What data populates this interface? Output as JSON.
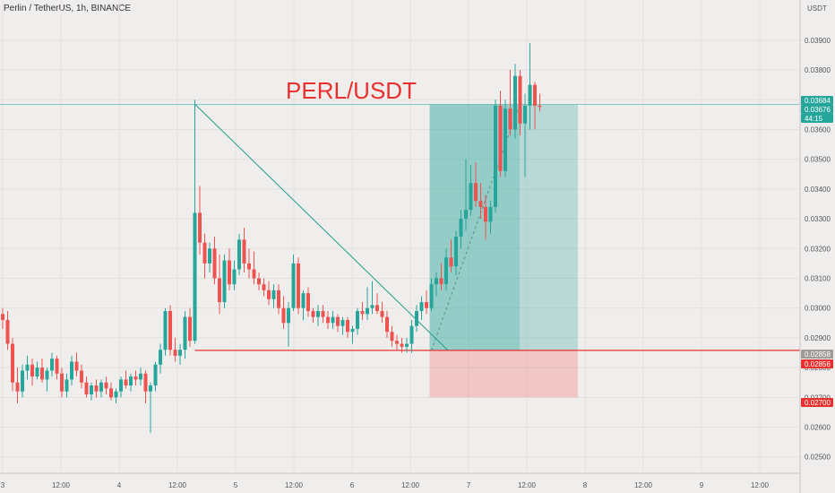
{
  "header": {
    "symbol_text": "Perlin / TetherUS, 1h, BINANCE"
  },
  "colors": {
    "background": "#f0eeed",
    "grid": "#e3e0df",
    "up": "#26a69a",
    "down": "#ef5350",
    "profit_zone": "#26a69a",
    "loss_zone": "#ef5350",
    "title": "#e8312f",
    "price_line": "#26a69a",
    "entry_line": "#e8312f"
  },
  "chart_data": {
    "type": "candlestick",
    "title": "PERL/USDT",
    "y_axis": {
      "unit_label": "USDT",
      "ticks": [
        "0.02500",
        "0.02600",
        "0.02700",
        "0.02800",
        "0.02900",
        "0.03000",
        "0.03100",
        "0.03200",
        "0.03300",
        "0.03400",
        "0.03500",
        "0.03600",
        "0.03700",
        "0.03800",
        "0.03900"
      ],
      "range": [
        0.02445,
        0.04035
      ]
    },
    "x_axis": {
      "ticks": [
        "3",
        "12:00",
        "4",
        "12:00",
        "5",
        "12:00",
        "6",
        "12:00",
        "7",
        "12:00",
        "8",
        "12:00",
        "9",
        "12:00"
      ]
    },
    "price_labels": [
      {
        "text": "0.03684",
        "kind": "current"
      },
      {
        "text": "0.03676",
        "kind": "current"
      },
      {
        "text": "44:15",
        "kind": "countdown"
      },
      {
        "text": "0.02858",
        "kind": "entry"
      },
      {
        "text": "0.02856",
        "kind": "entry-alt"
      },
      {
        "text": "0.02700",
        "kind": "stop"
      }
    ],
    "position": {
      "entry": 0.02858,
      "target": 0.03684,
      "stop": 0.027,
      "start_bar": 0,
      "end_bar": 0
    },
    "trendline": {
      "from_price": 0.03685,
      "to_price": 0.02858
    },
    "ohlc": [
      [
        0.0298,
        0.03,
        0.0293,
        0.0296
      ],
      [
        0.0296,
        0.0299,
        0.0286,
        0.0288
      ],
      [
        0.0288,
        0.029,
        0.0272,
        0.0275
      ],
      [
        0.0275,
        0.028,
        0.0268,
        0.0272
      ],
      [
        0.0272,
        0.0281,
        0.027,
        0.0279
      ],
      [
        0.0279,
        0.0284,
        0.0276,
        0.0281
      ],
      [
        0.0281,
        0.0283,
        0.0274,
        0.0277
      ],
      [
        0.0277,
        0.0282,
        0.0276,
        0.028
      ],
      [
        0.028,
        0.0283,
        0.0275,
        0.0276
      ],
      [
        0.0276,
        0.028,
        0.0272,
        0.0279
      ],
      [
        0.0279,
        0.0285,
        0.0277,
        0.0283
      ],
      [
        0.0283,
        0.0284,
        0.0276,
        0.0278
      ],
      [
        0.0278,
        0.028,
        0.027,
        0.0272
      ],
      [
        0.0272,
        0.0278,
        0.027,
        0.0276
      ],
      [
        0.0276,
        0.0284,
        0.0274,
        0.0282
      ],
      [
        0.0282,
        0.0285,
        0.0277,
        0.0279
      ],
      [
        0.0279,
        0.0281,
        0.0273,
        0.0275
      ],
      [
        0.0275,
        0.0277,
        0.027,
        0.0271
      ],
      [
        0.0271,
        0.0275,
        0.0269,
        0.0274
      ],
      [
        0.0274,
        0.0276,
        0.027,
        0.0272
      ],
      [
        0.0272,
        0.0276,
        0.027,
        0.0275
      ],
      [
        0.0275,
        0.0277,
        0.0271,
        0.0273
      ],
      [
        0.0273,
        0.0275,
        0.0269,
        0.027
      ],
      [
        0.027,
        0.0273,
        0.0268,
        0.0272
      ],
      [
        0.0272,
        0.0277,
        0.027,
        0.0276
      ],
      [
        0.0276,
        0.0279,
        0.0273,
        0.0274
      ],
      [
        0.0274,
        0.0278,
        0.0272,
        0.0277
      ],
      [
        0.0277,
        0.0279,
        0.0274,
        0.0276
      ],
      [
        0.0276,
        0.028,
        0.0274,
        0.0278
      ],
      [
        0.0278,
        0.0279,
        0.0268,
        0.0272
      ],
      [
        0.0272,
        0.0275,
        0.0258,
        0.0274
      ],
      [
        0.0274,
        0.0282,
        0.0272,
        0.0281
      ],
      [
        0.0281,
        0.0288,
        0.0278,
        0.0286
      ],
      [
        0.0286,
        0.03,
        0.0284,
        0.0299
      ],
      [
        0.0299,
        0.0301,
        0.0284,
        0.0286
      ],
      [
        0.0286,
        0.029,
        0.0282,
        0.0284
      ],
      [
        0.0284,
        0.0288,
        0.0281,
        0.0286
      ],
      [
        0.0286,
        0.0299,
        0.0283,
        0.0297
      ],
      [
        0.0297,
        0.03,
        0.0287,
        0.0289
      ],
      [
        0.0289,
        0.037,
        0.0288,
        0.0332
      ],
      [
        0.0332,
        0.0341,
        0.0318,
        0.0322
      ],
      [
        0.0322,
        0.0325,
        0.031,
        0.0315
      ],
      [
        0.0315,
        0.0322,
        0.0312,
        0.032
      ],
      [
        0.032,
        0.0324,
        0.0308,
        0.031
      ],
      [
        0.031,
        0.0318,
        0.0298,
        0.0302
      ],
      [
        0.0302,
        0.0318,
        0.03,
        0.0316
      ],
      [
        0.0316,
        0.032,
        0.0306,
        0.0308
      ],
      [
        0.0308,
        0.0316,
        0.0306,
        0.0313
      ],
      [
        0.0313,
        0.0325,
        0.0311,
        0.0323
      ],
      [
        0.0323,
        0.0327,
        0.0312,
        0.0315
      ],
      [
        0.0315,
        0.032,
        0.031,
        0.0313
      ],
      [
        0.0313,
        0.0319,
        0.0308,
        0.031
      ],
      [
        0.031,
        0.0312,
        0.0306,
        0.0308
      ],
      [
        0.0308,
        0.031,
        0.0304,
        0.0306
      ],
      [
        0.0306,
        0.0309,
        0.0301,
        0.0303
      ],
      [
        0.0303,
        0.0308,
        0.03,
        0.0306
      ],
      [
        0.0306,
        0.0308,
        0.0298,
        0.03
      ],
      [
        0.03,
        0.0304,
        0.0293,
        0.0295
      ],
      [
        0.0295,
        0.0302,
        0.0287,
        0.03
      ],
      [
        0.03,
        0.0318,
        0.0299,
        0.0315
      ],
      [
        0.0315,
        0.0317,
        0.0298,
        0.03
      ],
      [
        0.03,
        0.0306,
        0.0296,
        0.0305
      ],
      [
        0.0305,
        0.0307,
        0.0297,
        0.0299
      ],
      [
        0.0299,
        0.03,
        0.0295,
        0.0297
      ],
      [
        0.0297,
        0.0301,
        0.0294,
        0.0299
      ],
      [
        0.0299,
        0.0301,
        0.0295,
        0.0297
      ],
      [
        0.0297,
        0.0299,
        0.0293,
        0.0295
      ],
      [
        0.0295,
        0.0299,
        0.0293,
        0.0297
      ],
      [
        0.0297,
        0.0298,
        0.0292,
        0.0294
      ],
      [
        0.0294,
        0.0297,
        0.0291,
        0.0296
      ],
      [
        0.0296,
        0.0297,
        0.029,
        0.0292
      ],
      [
        0.0292,
        0.0294,
        0.0288,
        0.0293
      ],
      [
        0.0293,
        0.03,
        0.0291,
        0.0299
      ],
      [
        0.0299,
        0.0302,
        0.0296,
        0.0298
      ],
      [
        0.0298,
        0.0307,
        0.0296,
        0.03
      ],
      [
        0.03,
        0.0309,
        0.0298,
        0.0301
      ],
      [
        0.0301,
        0.0305,
        0.0298,
        0.0299
      ],
      [
        0.0299,
        0.0302,
        0.0295,
        0.0297
      ],
      [
        0.0297,
        0.0299,
        0.029,
        0.0292
      ],
      [
        0.0292,
        0.0294,
        0.0287,
        0.0289
      ],
      [
        0.0289,
        0.0291,
        0.0286,
        0.0288
      ],
      [
        0.0288,
        0.029,
        0.0285,
        0.0287
      ],
      [
        0.0287,
        0.029,
        0.0285,
        0.0288
      ],
      [
        0.0288,
        0.0296,
        0.0285,
        0.0294
      ],
      [
        0.0294,
        0.0301,
        0.0292,
        0.0299
      ],
      [
        0.0299,
        0.0304,
        0.0296,
        0.0302
      ],
      [
        0.0302,
        0.0306,
        0.0298,
        0.03
      ],
      [
        0.03,
        0.031,
        0.0299,
        0.0308
      ],
      [
        0.0308,
        0.0312,
        0.0304,
        0.031
      ],
      [
        0.031,
        0.0315,
        0.0306,
        0.0308
      ],
      [
        0.0308,
        0.032,
        0.0306,
        0.0317
      ],
      [
        0.0317,
        0.0323,
        0.0312,
        0.0314
      ],
      [
        0.0314,
        0.0326,
        0.0311,
        0.0324
      ],
      [
        0.0324,
        0.0333,
        0.032,
        0.033
      ],
      [
        0.033,
        0.035,
        0.0326,
        0.0333
      ],
      [
        0.0333,
        0.0348,
        0.0331,
        0.0342
      ],
      [
        0.0342,
        0.0349,
        0.0334,
        0.0336
      ],
      [
        0.0336,
        0.0342,
        0.033,
        0.0334
      ],
      [
        0.0334,
        0.0338,
        0.0323,
        0.0329
      ],
      [
        0.0329,
        0.0336,
        0.0325,
        0.0334
      ],
      [
        0.0334,
        0.037,
        0.0332,
        0.0368
      ],
      [
        0.0368,
        0.0373,
        0.0344,
        0.0346
      ],
      [
        0.0346,
        0.037,
        0.0344,
        0.0367
      ],
      [
        0.0367,
        0.038,
        0.0358,
        0.036
      ],
      [
        0.036,
        0.0382,
        0.0357,
        0.0378
      ],
      [
        0.0378,
        0.038,
        0.0358,
        0.0362
      ],
      [
        0.0362,
        0.0372,
        0.0344,
        0.0368
      ],
      [
        0.0368,
        0.0389,
        0.036,
        0.0375
      ],
      [
        0.0375,
        0.0376,
        0.036,
        0.0368
      ],
      [
        0.0368,
        0.0372,
        0.0366,
        0.03676
      ]
    ]
  }
}
